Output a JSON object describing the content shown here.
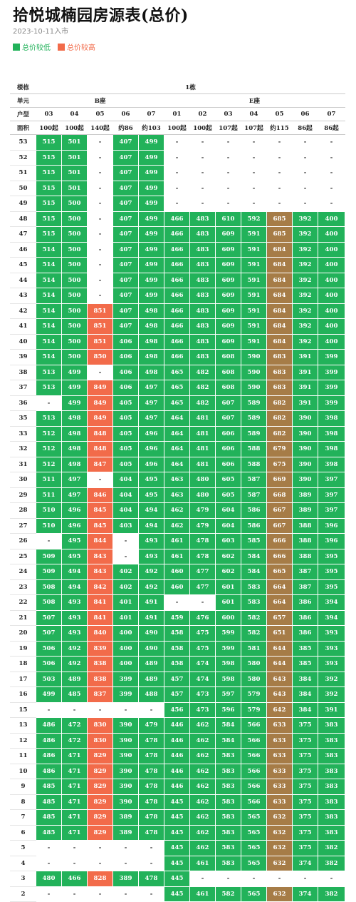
{
  "title": "拾悦城楠园房源表(总价)",
  "date": "2023-10-11入市",
  "legend": {
    "low": {
      "label": "总价较低",
      "color": "#22b25a"
    },
    "high": {
      "label": "总价较高",
      "color": "#f26b4a"
    }
  },
  "colors": {
    "green": "#22b25a",
    "red": "#f26b4a",
    "brown": "#a67c47"
  },
  "header": {
    "building_label": "楼栋",
    "building": "1栋",
    "unit_label": "单元",
    "units": [
      {
        "name": "B座",
        "span": 5
      },
      {
        "name": "E座",
        "span": 7
      }
    ],
    "type_label": "户型",
    "types": [
      "03",
      "04",
      "05",
      "06",
      "07",
      "01",
      "02",
      "03",
      "04",
      "05",
      "06",
      "07"
    ],
    "area_label": "面积",
    "areas": [
      "100起",
      "100起",
      "140起",
      "约86",
      "约103",
      "100起",
      "100起",
      "107起",
      "107起",
      "约115",
      "86起",
      "86起"
    ]
  },
  "rows": [
    {
      "floor": "53",
      "cells": [
        "g515",
        "g501",
        "w-",
        "g407",
        "g499",
        "w-",
        "w-",
        "w-",
        "w-",
        "w-",
        "w-",
        "w-"
      ]
    },
    {
      "floor": "52",
      "cells": [
        "g515",
        "g501",
        "w-",
        "g407",
        "g499",
        "w-",
        "w-",
        "w-",
        "w-",
        "w-",
        "w-",
        "w-"
      ]
    },
    {
      "floor": "51",
      "cells": [
        "g515",
        "g501",
        "w-",
        "g407",
        "g499",
        "w-",
        "w-",
        "w-",
        "w-",
        "w-",
        "w-",
        "w-"
      ]
    },
    {
      "floor": "50",
      "cells": [
        "g515",
        "g501",
        "w-",
        "g407",
        "g499",
        "w-",
        "w-",
        "w-",
        "w-",
        "w-",
        "w-",
        "w-"
      ]
    },
    {
      "floor": "49",
      "cells": [
        "g515",
        "g500",
        "w-",
        "g407",
        "g499",
        "w-",
        "w-",
        "w-",
        "w-",
        "w-",
        "w-",
        "w-"
      ]
    },
    {
      "floor": "48",
      "cells": [
        "g515",
        "g500",
        "w-",
        "g407",
        "g499",
        "g466",
        "g483",
        "g610",
        "g592",
        "b685",
        "g392",
        "g400"
      ]
    },
    {
      "floor": "47",
      "cells": [
        "g515",
        "g500",
        "w-",
        "g407",
        "g499",
        "g466",
        "g483",
        "g609",
        "g591",
        "b685",
        "g392",
        "g400"
      ]
    },
    {
      "floor": "46",
      "cells": [
        "g514",
        "g500",
        "w-",
        "g407",
        "g499",
        "g466",
        "g483",
        "g609",
        "g591",
        "b684",
        "g392",
        "g400"
      ]
    },
    {
      "floor": "45",
      "cells": [
        "g514",
        "g500",
        "w-",
        "g407",
        "g499",
        "g466",
        "g483",
        "g609",
        "g591",
        "b684",
        "g392",
        "g400"
      ]
    },
    {
      "floor": "44",
      "cells": [
        "g514",
        "g500",
        "w-",
        "g407",
        "g499",
        "g466",
        "g483",
        "g609",
        "g591",
        "b684",
        "g392",
        "g400"
      ]
    },
    {
      "floor": "43",
      "cells": [
        "g514",
        "g500",
        "w-",
        "g407",
        "g499",
        "g466",
        "g483",
        "g609",
        "g591",
        "b684",
        "g392",
        "g400"
      ]
    },
    {
      "floor": "42",
      "cells": [
        "g514",
        "g500",
        "r851",
        "g407",
        "g498",
        "g466",
        "g483",
        "g609",
        "g591",
        "b684",
        "g392",
        "g400"
      ]
    },
    {
      "floor": "41",
      "cells": [
        "g514",
        "g500",
        "r851",
        "g407",
        "g498",
        "g466",
        "g483",
        "g609",
        "g591",
        "b684",
        "g392",
        "g400"
      ]
    },
    {
      "floor": "40",
      "cells": [
        "g514",
        "g500",
        "r851",
        "g406",
        "g498",
        "g466",
        "g483",
        "g609",
        "g591",
        "b684",
        "g392",
        "g400"
      ]
    },
    {
      "floor": "39",
      "cells": [
        "g514",
        "g500",
        "r850",
        "g406",
        "g498",
        "g466",
        "g483",
        "g608",
        "g590",
        "b683",
        "g391",
        "g399"
      ]
    },
    {
      "floor": "38",
      "cells": [
        "g513",
        "g499",
        "w-",
        "g406",
        "g498",
        "g465",
        "g482",
        "g608",
        "g590",
        "b683",
        "g391",
        "g399"
      ]
    },
    {
      "floor": "37",
      "cells": [
        "g513",
        "g499",
        "r849",
        "g406",
        "g497",
        "g465",
        "g482",
        "g608",
        "g590",
        "b683",
        "g391",
        "g399"
      ]
    },
    {
      "floor": "36",
      "cells": [
        "w-",
        "g499",
        "r849",
        "g405",
        "g497",
        "g465",
        "g482",
        "g607",
        "g589",
        "b682",
        "g391",
        "g399"
      ]
    },
    {
      "floor": "35",
      "cells": [
        "g513",
        "g498",
        "r849",
        "g405",
        "g497",
        "g464",
        "g481",
        "g607",
        "g589",
        "b682",
        "g390",
        "g398"
      ]
    },
    {
      "floor": "33",
      "cells": [
        "g512",
        "g498",
        "r848",
        "g405",
        "g496",
        "g464",
        "g481",
        "g606",
        "g589",
        "b682",
        "g390",
        "g398"
      ]
    },
    {
      "floor": "32",
      "cells": [
        "g512",
        "g498",
        "r848",
        "g405",
        "g496",
        "g464",
        "g481",
        "g606",
        "g588",
        "b679",
        "g390",
        "g398"
      ]
    },
    {
      "floor": "31",
      "cells": [
        "g512",
        "g498",
        "r847",
        "g405",
        "g496",
        "g464",
        "g481",
        "g606",
        "g588",
        "b675",
        "g390",
        "g398"
      ]
    },
    {
      "floor": "30",
      "cells": [
        "g511",
        "g497",
        "w-",
        "g404",
        "g495",
        "g463",
        "g480",
        "g605",
        "g587",
        "b669",
        "g390",
        "g397"
      ]
    },
    {
      "floor": "29",
      "cells": [
        "g511",
        "g497",
        "r846",
        "g404",
        "g495",
        "g463",
        "g480",
        "g605",
        "g587",
        "b668",
        "g389",
        "g397"
      ]
    },
    {
      "floor": "28",
      "cells": [
        "g510",
        "g496",
        "r845",
        "g404",
        "g494",
        "g462",
        "g479",
        "g604",
        "g586",
        "b667",
        "g389",
        "g397"
      ]
    },
    {
      "floor": "27",
      "cells": [
        "g510",
        "g496",
        "r845",
        "g403",
        "g494",
        "g462",
        "g479",
        "g604",
        "g586",
        "b667",
        "g388",
        "g396"
      ]
    },
    {
      "floor": "26",
      "cells": [
        "w-",
        "g495",
        "r844",
        "w-",
        "g493",
        "g461",
        "g478",
        "g603",
        "g585",
        "b666",
        "g388",
        "g396"
      ]
    },
    {
      "floor": "25",
      "cells": [
        "g509",
        "g495",
        "r843",
        "w-",
        "g493",
        "g461",
        "g478",
        "g602",
        "g584",
        "b666",
        "g388",
        "g395"
      ]
    },
    {
      "floor": "24",
      "cells": [
        "g509",
        "g494",
        "r843",
        "g402",
        "g492",
        "g460",
        "g477",
        "g602",
        "g584",
        "b665",
        "g387",
        "g395"
      ]
    },
    {
      "floor": "23",
      "cells": [
        "g508",
        "g494",
        "r842",
        "g402",
        "g492",
        "g460",
        "g477",
        "g601",
        "g583",
        "b664",
        "g387",
        "g395"
      ]
    },
    {
      "floor": "22",
      "cells": [
        "g508",
        "g493",
        "r841",
        "g401",
        "g491",
        "w-",
        "w-",
        "g601",
        "g583",
        "b664",
        "g386",
        "g394"
      ]
    },
    {
      "floor": "21",
      "cells": [
        "g507",
        "g493",
        "r841",
        "g401",
        "g491",
        "g459",
        "g476",
        "g600",
        "g582",
        "b657",
        "g386",
        "g394"
      ]
    },
    {
      "floor": "20",
      "cells": [
        "g507",
        "g493",
        "r840",
        "g400",
        "g490",
        "g458",
        "g475",
        "g599",
        "g582",
        "b651",
        "g386",
        "g393"
      ]
    },
    {
      "floor": "19",
      "cells": [
        "g506",
        "g492",
        "r839",
        "g400",
        "g490",
        "g458",
        "g475",
        "g599",
        "g581",
        "b644",
        "g385",
        "g393"
      ]
    },
    {
      "floor": "18",
      "cells": [
        "g506",
        "g492",
        "r838",
        "g400",
        "g489",
        "g458",
        "g474",
        "g598",
        "g580",
        "b644",
        "g385",
        "g393"
      ]
    },
    {
      "floor": "17",
      "cells": [
        "g503",
        "g489",
        "r838",
        "g399",
        "g489",
        "g457",
        "g474",
        "g598",
        "g580",
        "b643",
        "g384",
        "g392"
      ]
    },
    {
      "floor": "16",
      "cells": [
        "g499",
        "g485",
        "r837",
        "g399",
        "g488",
        "g457",
        "g473",
        "g597",
        "g579",
        "b643",
        "g384",
        "g392"
      ]
    },
    {
      "floor": "15",
      "cells": [
        "w-",
        "w-",
        "w-",
        "w-",
        "w-",
        "g456",
        "g473",
        "g596",
        "g579",
        "b642",
        "g384",
        "g391"
      ]
    },
    {
      "floor": "13",
      "cells": [
        "g486",
        "g472",
        "r830",
        "g390",
        "g479",
        "g446",
        "g462",
        "g584",
        "g566",
        "b633",
        "g375",
        "g383"
      ]
    },
    {
      "floor": "12",
      "cells": [
        "g486",
        "g472",
        "r830",
        "g390",
        "g478",
        "g446",
        "g462",
        "g584",
        "g566",
        "b633",
        "g375",
        "g383"
      ]
    },
    {
      "floor": "11",
      "cells": [
        "g486",
        "g471",
        "r829",
        "g390",
        "g478",
        "g446",
        "g462",
        "g583",
        "g566",
        "b633",
        "g375",
        "g383"
      ]
    },
    {
      "floor": "10",
      "cells": [
        "g486",
        "g471",
        "r829",
        "g390",
        "g478",
        "g446",
        "g462",
        "g583",
        "g566",
        "b633",
        "g375",
        "g383"
      ]
    },
    {
      "floor": "9",
      "cells": [
        "g485",
        "g471",
        "r829",
        "g390",
        "g478",
        "g446",
        "g462",
        "g583",
        "g566",
        "b633",
        "g375",
        "g383"
      ]
    },
    {
      "floor": "8",
      "cells": [
        "g485",
        "g471",
        "r829",
        "g390",
        "g478",
        "g445",
        "g462",
        "g583",
        "g566",
        "b633",
        "g375",
        "g383"
      ]
    },
    {
      "floor": "7",
      "cells": [
        "g485",
        "g471",
        "r829",
        "g389",
        "g478",
        "g445",
        "g462",
        "g583",
        "g565",
        "b632",
        "g375",
        "g383"
      ]
    },
    {
      "floor": "6",
      "cells": [
        "g485",
        "g471",
        "r829",
        "g389",
        "g478",
        "g445",
        "g462",
        "g583",
        "g565",
        "b632",
        "g375",
        "g383"
      ]
    },
    {
      "floor": "5",
      "cells": [
        "w-",
        "w-",
        "w-",
        "w-",
        "w-",
        "g445",
        "g462",
        "g583",
        "g565",
        "b632",
        "g375",
        "g382"
      ]
    },
    {
      "floor": "4",
      "cells": [
        "w-",
        "w-",
        "w-",
        "w-",
        "w-",
        "g445",
        "g461",
        "g583",
        "g565",
        "b632",
        "g374",
        "g382"
      ]
    },
    {
      "floor": "3",
      "cells": [
        "g480",
        "g466",
        "r828",
        "g389",
        "g478",
        "g445",
        "w-",
        "w-",
        "w-",
        "w-",
        "w-",
        "w-"
      ]
    },
    {
      "floor": "2",
      "cells": [
        "w-",
        "w-",
        "w-",
        "w-",
        "w-",
        "g445",
        "g461",
        "g582",
        "g565",
        "b632",
        "g374",
        "g382"
      ]
    }
  ]
}
